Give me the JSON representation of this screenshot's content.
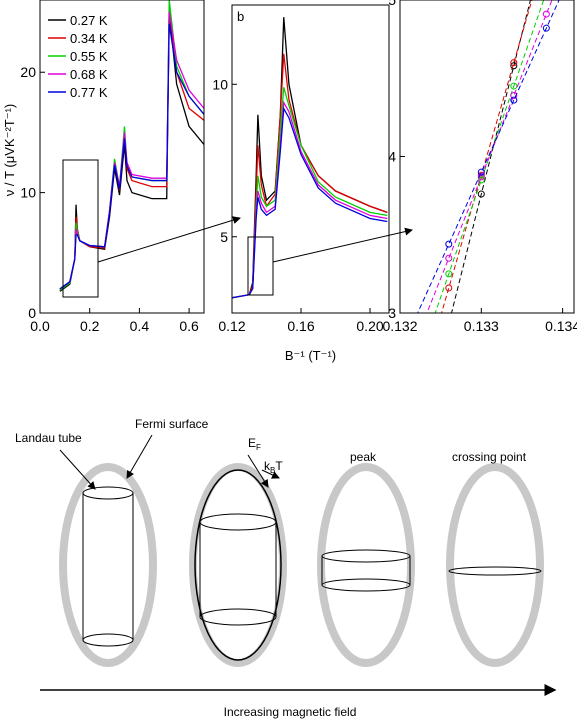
{
  "chart_data": [
    {
      "type": "line",
      "y_label": "ν / T (μVK⁻²T⁻¹)",
      "xlim": [
        0,
        0.66
      ],
      "ylim": [
        0,
        26
      ],
      "xticks": [
        {
          "value": 0,
          "label": "0.0"
        },
        0.2,
        0.4,
        0.6
      ],
      "yticks": [
        0,
        10,
        20
      ],
      "legend": "top-left",
      "x": [
        0.08,
        0.12,
        0.14,
        0.145,
        0.15,
        0.16,
        0.2,
        0.26,
        0.28,
        0.3,
        0.32,
        0.34,
        0.35,
        0.37,
        0.45,
        0.51,
        0.52,
        0.55,
        0.6,
        0.66
      ],
      "series": [
        {
          "name": "0.27 K",
          "color": "#000000",
          "values": [
            1.8,
            2.4,
            4.5,
            9,
            7,
            6,
            5.5,
            5.3,
            8,
            12,
            9.8,
            14,
            11,
            10,
            9.5,
            9.5,
            25,
            19,
            15.5,
            14
          ]
        },
        {
          "name": "0.34 K",
          "color": "#e00000",
          "values": [
            1.9,
            2.5,
            4.5,
            8,
            7,
            6,
            5.5,
            5.4,
            8.5,
            12.5,
            10.2,
            15,
            12,
            11,
            10.5,
            10.5,
            25.5,
            20,
            17,
            16
          ]
        },
        {
          "name": "0.55 K",
          "color": "#00d000",
          "values": [
            1.9,
            2.5,
            4.5,
            7.5,
            6.8,
            6,
            5.6,
            5.5,
            8.5,
            12.8,
            10.5,
            15.5,
            12.3,
            11.3,
            11,
            11,
            26,
            20.5,
            18,
            16.5
          ]
        },
        {
          "name": "0.68  K",
          "color": "#e000e0",
          "values": [
            2,
            2.6,
            4.5,
            7,
            6.6,
            6,
            5.6,
            5.5,
            8.5,
            12.5,
            10.5,
            15,
            12.5,
            11.5,
            11.2,
            11.2,
            25,
            21,
            18.5,
            17
          ]
        },
        {
          "name": "0.77 K",
          "color": "#0000e0",
          "values": [
            2,
            2.6,
            4.5,
            6.5,
            6.5,
            6,
            5.6,
            5.5,
            8.3,
            12.3,
            10.3,
            14.5,
            12.2,
            11.3,
            11,
            11,
            24,
            20,
            18,
            16.5
          ]
        }
      ]
    },
    {
      "type": "line",
      "label": "b",
      "x_label": "B⁻¹ (T⁻¹)",
      "xlim": [
        0.12,
        0.211
      ],
      "ylim": [
        2.5,
        12.6
      ],
      "xticks": [
        0.12,
        0.16,
        {
          "value": 0.2,
          "label": "0.20"
        }
      ],
      "yticks": [
        5,
        10
      ],
      "x": [
        0.12,
        0.13,
        0.132,
        0.134,
        0.135,
        0.137,
        0.14,
        0.145,
        0.148,
        0.15,
        0.153,
        0.16,
        0.17,
        0.18,
        0.2,
        0.21
      ],
      "series": [
        {
          "color": "#000000",
          "values": [
            3,
            3.1,
            3.5,
            7,
            9,
            7,
            6.2,
            6.5,
            9,
            12.2,
            10,
            8,
            7,
            6.5,
            6,
            5.8
          ]
        },
        {
          "color": "#e00000",
          "values": [
            3,
            3.1,
            3.4,
            6.5,
            8,
            6.7,
            6,
            6.4,
            9,
            11,
            9.5,
            8,
            7,
            6.5,
            6,
            5.8
          ]
        },
        {
          "color": "#00d000",
          "values": [
            3,
            3.1,
            3.3,
            6,
            7,
            6.3,
            6,
            6.2,
            8.5,
            9.9,
            9.3,
            8,
            6.8,
            6.3,
            5.8,
            5.7
          ]
        },
        {
          "color": "#e000e0",
          "values": [
            3,
            3.1,
            3.3,
            5.8,
            6.5,
            6.1,
            5.8,
            6,
            8,
            9.4,
            9.1,
            7.8,
            6.7,
            6.2,
            5.7,
            5.6
          ]
        },
        {
          "color": "#0000e0",
          "values": [
            3,
            3.1,
            3.3,
            5.6,
            6.3,
            5.9,
            5.7,
            5.9,
            7.8,
            9.2,
            8.9,
            7.7,
            6.6,
            6.1,
            5.6,
            5.5
          ]
        }
      ]
    },
    {
      "type": "scatter-line",
      "xlim": [
        0.132,
        0.13414
      ],
      "ylim": [
        3,
        5
      ],
      "xticks": [
        0.132,
        0.133,
        0.134
      ],
      "yticks": [
        3,
        4,
        5
      ],
      "x": [
        0.1322,
        0.1326,
        0.133,
        0.1334,
        0.1338,
        0.1342
      ],
      "series": [
        {
          "color": "#000000",
          "values": [
            2.1,
            2.93,
            3.76,
            4.58,
            5.4,
            null
          ]
        },
        {
          "color": "#e00000",
          "values": [
            2.44,
            3.16,
            3.88,
            4.6,
            5.32,
            null
          ]
        },
        {
          "color": "#00d000",
          "values": [
            2.65,
            3.25,
            3.85,
            4.45,
            5.05,
            null
          ]
        },
        {
          "color": "#e000e0",
          "values": [
            2.83,
            3.35,
            3.87,
            4.39,
            4.91,
            5.43
          ]
        },
        {
          "color": "#0000e0",
          "values": [
            2.98,
            3.44,
            3.9,
            4.36,
            4.82,
            5.28
          ]
        }
      ]
    }
  ],
  "diagram": {
    "landau_tube": "Landau tube",
    "fermi_surface": "Fermi surface",
    "ef": [
      "E",
      "F"
    ],
    "kbt": [
      "k",
      "B",
      "T"
    ],
    "peak": "peak",
    "crossing_point": "crossing point",
    "axis_label": "Increasing magnetic field"
  }
}
